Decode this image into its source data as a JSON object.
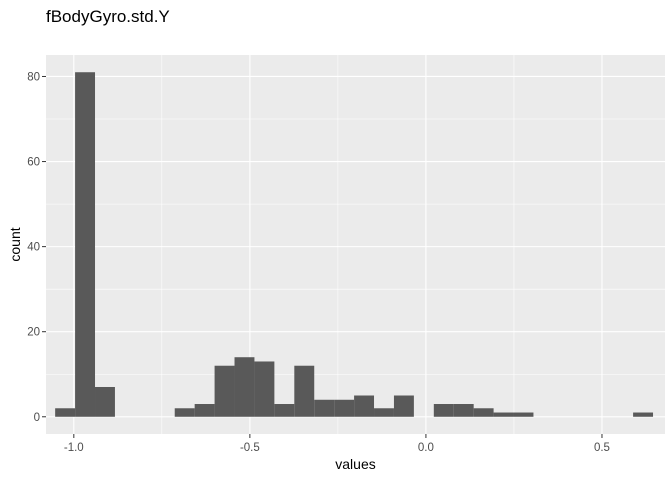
{
  "chart_data": {
    "type": "bar",
    "title": "fBodyGyro.std.Y",
    "xlabel": "values",
    "ylabel": "count",
    "xlim": [
      -1.079,
      0.679
    ],
    "ylim": [
      -4.05,
      85.05
    ],
    "x_ticks": [
      -1.0,
      -0.5,
      0.0,
      0.5
    ],
    "x_tick_labels": [
      "-1.0",
      "-0.5",
      "0.0",
      "0.5"
    ],
    "y_ticks": [
      0,
      20,
      40,
      60,
      80
    ],
    "y_tick_labels": [
      "0",
      "20",
      "40",
      "60",
      "80"
    ],
    "grid": true,
    "bin_width": 0.0566,
    "bins": [
      {
        "x": -1.0247,
        "count": 2
      },
      {
        "x": -0.9681,
        "count": 81
      },
      {
        "x": -0.9115,
        "count": 7
      },
      {
        "x": -0.8549,
        "count": 0
      },
      {
        "x": -0.7983,
        "count": 0
      },
      {
        "x": -0.7417,
        "count": 0
      },
      {
        "x": -0.6851,
        "count": 2
      },
      {
        "x": -0.6285,
        "count": 3
      },
      {
        "x": -0.5719,
        "count": 12
      },
      {
        "x": -0.5153,
        "count": 14
      },
      {
        "x": -0.4587,
        "count": 13
      },
      {
        "x": -0.4021,
        "count": 3
      },
      {
        "x": -0.3455,
        "count": 12
      },
      {
        "x": -0.2889,
        "count": 4
      },
      {
        "x": -0.2323,
        "count": 4
      },
      {
        "x": -0.1757,
        "count": 5
      },
      {
        "x": -0.1191,
        "count": 2
      },
      {
        "x": -0.0625,
        "count": 5
      },
      {
        "x": -0.0059,
        "count": 0
      },
      {
        "x": 0.0507,
        "count": 3
      },
      {
        "x": 0.1073,
        "count": 3
      },
      {
        "x": 0.1639,
        "count": 2
      },
      {
        "x": 0.2205,
        "count": 1
      },
      {
        "x": 0.2771,
        "count": 1
      },
      {
        "x": 0.3337,
        "count": 0
      },
      {
        "x": 0.3903,
        "count": 0
      },
      {
        "x": 0.4469,
        "count": 0
      },
      {
        "x": 0.5035,
        "count": 0
      },
      {
        "x": 0.5601,
        "count": 0
      },
      {
        "x": 0.6167,
        "count": 1
      }
    ],
    "colors": {
      "panel_background": "#ebebeb",
      "grid_major": "#ffffff",
      "bar_fill": "#595959",
      "tick_mark": "#333333",
      "tick_text": "#4d4d4d"
    }
  }
}
